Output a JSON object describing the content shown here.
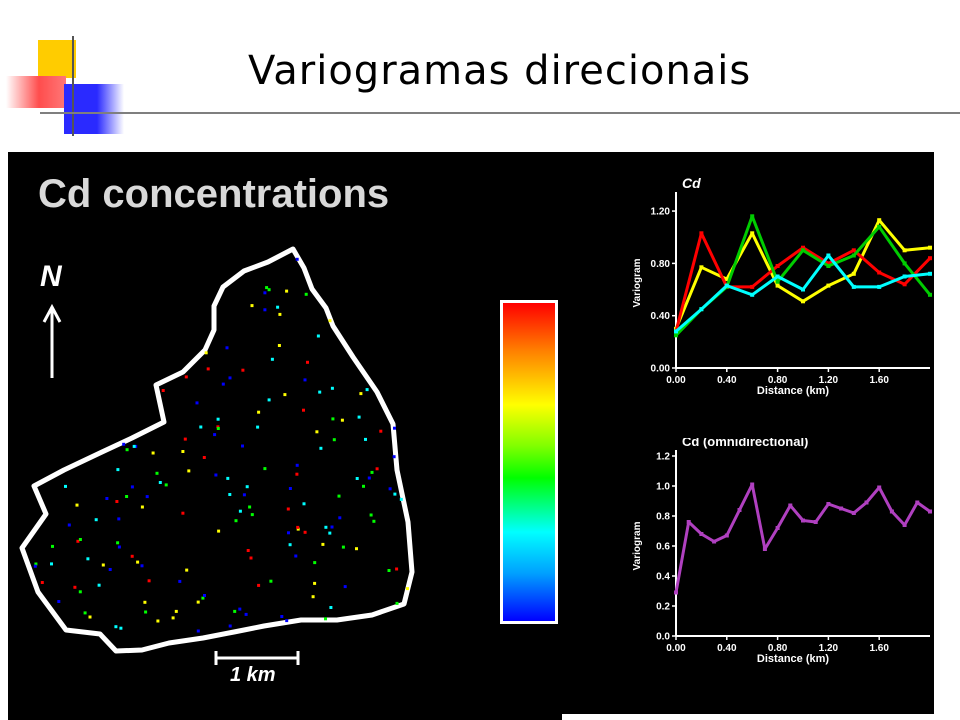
{
  "slide": {
    "title": "Variogramas direcionais"
  },
  "map": {
    "title": "Cd concentrations",
    "north_label": "N",
    "scale_label": "1 km",
    "colorbar_colors": [
      "#0000ff",
      "#00ffff",
      "#00ff00",
      "#ffff00",
      "#ff0000"
    ]
  },
  "chart_data": [
    {
      "type": "line",
      "title": "Cd",
      "xlabel": "Distance (km)",
      "ylabel": "Variogram",
      "xlim": [
        0,
        2.0
      ],
      "ylim": [
        0,
        1.3
      ],
      "xticks": [
        "0.00",
        "0.40",
        "0.80",
        "1.20",
        "1.60"
      ],
      "yticks": [
        "0.00",
        "0.40",
        "0.80",
        "1.20"
      ],
      "grid": false,
      "series": [
        {
          "color": "#ffff00",
          "x": [
            0.0,
            0.2,
            0.4,
            0.6,
            0.8,
            1.0,
            1.2,
            1.4,
            1.6,
            1.8,
            2.0
          ],
          "y": [
            0.3,
            0.77,
            0.68,
            1.03,
            0.63,
            0.51,
            0.63,
            0.72,
            1.13,
            0.9,
            0.92
          ]
        },
        {
          "color": "#ff0000",
          "x": [
            0.0,
            0.2,
            0.4,
            0.6,
            0.8,
            1.0,
            1.2,
            1.4,
            1.6,
            1.8,
            2.0
          ],
          "y": [
            0.28,
            1.03,
            0.62,
            0.62,
            0.78,
            0.92,
            0.8,
            0.9,
            0.73,
            0.64,
            0.84
          ]
        },
        {
          "color": "#00cc00",
          "x": [
            0.0,
            0.2,
            0.4,
            0.6,
            0.8,
            1.0,
            1.2,
            1.4,
            1.6,
            1.8,
            2.0
          ],
          "y": [
            0.25,
            0.45,
            0.62,
            1.16,
            0.66,
            0.9,
            0.78,
            0.86,
            1.08,
            0.8,
            0.56
          ]
        },
        {
          "color": "#00ffff",
          "x": [
            0.0,
            0.2,
            0.4,
            0.6,
            0.8,
            1.0,
            1.2,
            1.4,
            1.6,
            1.8,
            2.0
          ],
          "y": [
            0.28,
            0.45,
            0.63,
            0.56,
            0.7,
            0.6,
            0.86,
            0.62,
            0.62,
            0.7,
            0.72
          ]
        }
      ]
    },
    {
      "type": "line",
      "title": "Cd (omnidirectional)",
      "xlabel": "Distance (km)",
      "ylabel": "Variogram",
      "xlim": [
        0,
        2.0
      ],
      "ylim": [
        0,
        1.2
      ],
      "xticks": [
        "0.00",
        "0.40",
        "0.80",
        "1.20",
        "1.60"
      ],
      "yticks": [
        "0.0",
        "0.2",
        "0.4",
        "0.6",
        "0.8",
        "1.0",
        "1.2"
      ],
      "grid": false,
      "series": [
        {
          "color": "#b040c0",
          "x": [
            0.0,
            0.1,
            0.2,
            0.3,
            0.4,
            0.5,
            0.6,
            0.7,
            0.8,
            0.9,
            1.0,
            1.1,
            1.2,
            1.3,
            1.4,
            1.5,
            1.6,
            1.7,
            1.8,
            1.9,
            2.0
          ],
          "y": [
            0.29,
            0.76,
            0.68,
            0.63,
            0.67,
            0.84,
            1.01,
            0.58,
            0.72,
            0.87,
            0.77,
            0.76,
            0.88,
            0.85,
            0.82,
            0.89,
            0.99,
            0.83,
            0.74,
            0.89,
            0.83
          ]
        }
      ]
    }
  ]
}
